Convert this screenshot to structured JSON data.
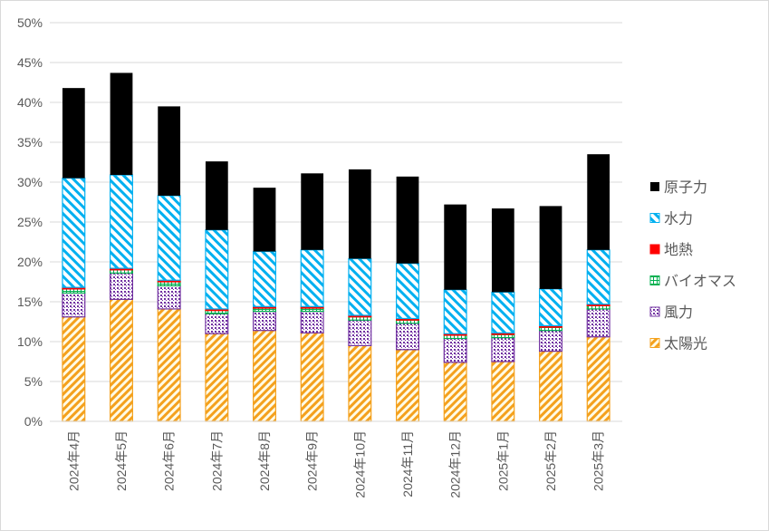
{
  "chart_data": {
    "type": "bar",
    "stacked": true,
    "title": "",
    "xlabel": "",
    "ylabel": "",
    "ylim": [
      0,
      0.5
    ],
    "y_ticks": [
      "0%",
      "5%",
      "10%",
      "15%",
      "20%",
      "25%",
      "30%",
      "35%",
      "40%",
      "45%",
      "50%"
    ],
    "grid": true,
    "legend_position": "right",
    "categories": [
      "2024年4月",
      "2024年5月",
      "2024年6月",
      "2024年7月",
      "2024年8月",
      "2024年9月",
      "2024年10月",
      "2024年11月",
      "2024年12月",
      "2025年1月",
      "2025年2月",
      "2025年3月"
    ],
    "series": [
      {
        "name": "太陽光",
        "color": "#f4a11d",
        "values": [
          0.131,
          0.153,
          0.141,
          0.11,
          0.114,
          0.111,
          0.095,
          0.09,
          0.074,
          0.075,
          0.088,
          0.106
        ]
      },
      {
        "name": "風力",
        "color": "#7030a0",
        "values": [
          0.03,
          0.033,
          0.029,
          0.025,
          0.024,
          0.027,
          0.032,
          0.033,
          0.03,
          0.03,
          0.026,
          0.035
        ]
      },
      {
        "name": "バイオマス",
        "color": "#00b050",
        "values": [
          0.005,
          0.004,
          0.005,
          0.004,
          0.004,
          0.004,
          0.004,
          0.004,
          0.004,
          0.004,
          0.004,
          0.004
        ]
      },
      {
        "name": "地熱",
        "color": "#ff0000",
        "values": [
          0.002,
          0.002,
          0.002,
          0.002,
          0.002,
          0.002,
          0.002,
          0.002,
          0.002,
          0.002,
          0.002,
          0.002
        ]
      },
      {
        "name": "水力",
        "color": "#00b0f0",
        "values": [
          0.137,
          0.117,
          0.106,
          0.099,
          0.069,
          0.071,
          0.071,
          0.069,
          0.055,
          0.051,
          0.046,
          0.068
        ]
      },
      {
        "name": "原子力",
        "color": "#000000",
        "values": [
          0.113,
          0.128,
          0.112,
          0.086,
          0.08,
          0.096,
          0.112,
          0.109,
          0.107,
          0.105,
          0.104,
          0.12
        ]
      }
    ]
  }
}
